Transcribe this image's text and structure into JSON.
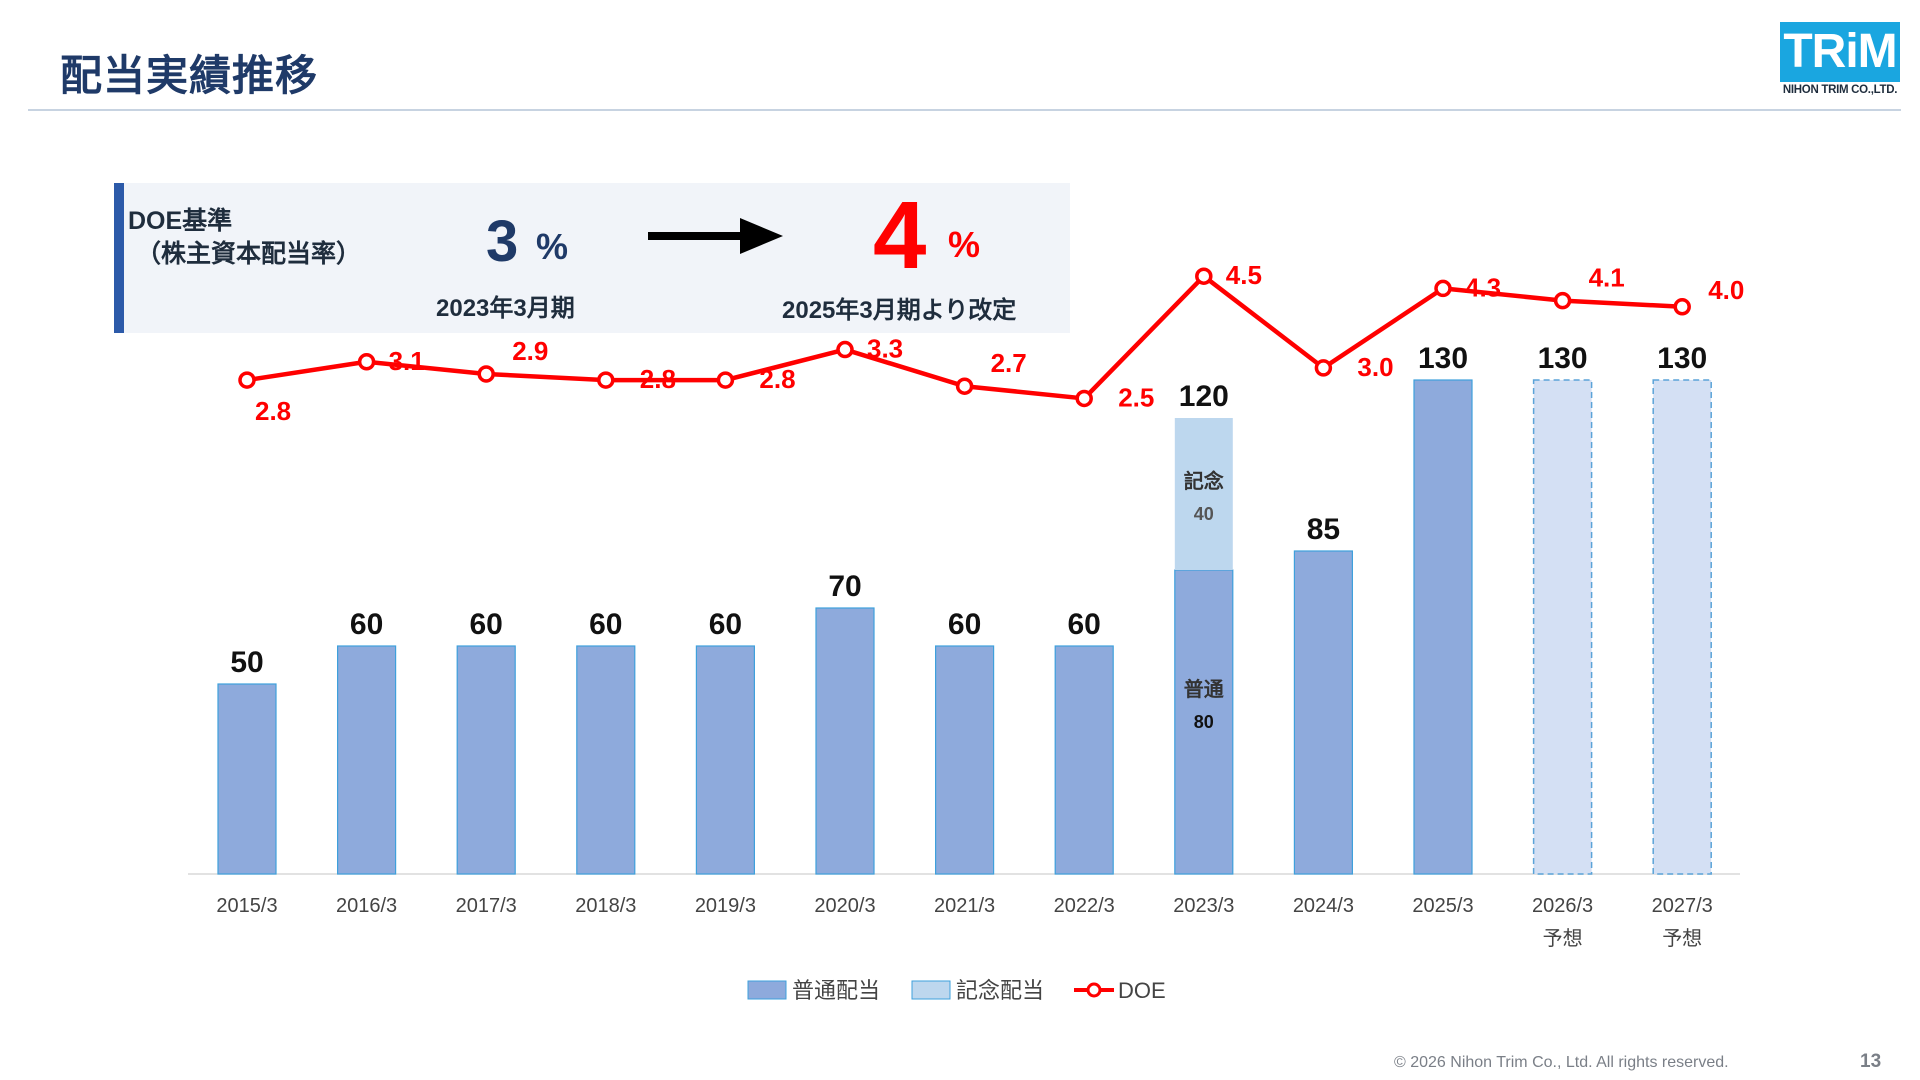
{
  "page": {
    "title": "配当実績推移",
    "copyright": "© 2026 Nihon Trim Co., Ltd. All rights reserved.",
    "page_number": "13"
  },
  "logo": {
    "mark": "TRiM",
    "company": "NIHON TRIM CO.,LTD.",
    "color": "#1aa6e0"
  },
  "doe_panel": {
    "label_line1": "DOE基準",
    "label_line2": "（株主資本配当率）",
    "old_value": "3",
    "old_unit": "%",
    "old_period": "2023年3月期",
    "new_value": "4",
    "new_unit": "%",
    "new_period": "2025年3月期より改定",
    "arrow_icon": "right-arrow-icon"
  },
  "chart_data": {
    "type": "bar",
    "categories": [
      "2015/3",
      "2016/3",
      "2017/3",
      "2018/3",
      "2019/3",
      "2020/3",
      "2021/3",
      "2022/3",
      "2023/3",
      "2024/3",
      "2025/3",
      "2026/3",
      "2027/3"
    ],
    "category_sublabels": [
      "",
      "",
      "",
      "",
      "",
      "",
      "",
      "",
      "",
      "",
      "",
      "予想",
      "予想"
    ],
    "forecast": [
      false,
      false,
      false,
      false,
      false,
      false,
      false,
      false,
      false,
      false,
      false,
      true,
      true
    ],
    "series": [
      {
        "name": "普通配当",
        "type": "bar",
        "color": "#8eaadc",
        "values": [
          50,
          60,
          60,
          60,
          60,
          70,
          60,
          60,
          80,
          85,
          130,
          130,
          130
        ]
      },
      {
        "name": "記念配当",
        "type": "bar",
        "color": "#bdd7ee",
        "values": [
          0,
          0,
          0,
          0,
          0,
          0,
          0,
          0,
          40,
          0,
          0,
          0,
          0
        ]
      },
      {
        "name": "DOE",
        "type": "line",
        "color": "#ff0000",
        "values": [
          2.8,
          3.1,
          2.9,
          2.8,
          2.8,
          3.3,
          2.7,
          2.5,
          4.5,
          3.0,
          4.3,
          4.1,
          4.0
        ]
      }
    ],
    "bar_total_labels": [
      "50",
      "60",
      "60",
      "60",
      "60",
      "70",
      "60",
      "60",
      "120",
      "85",
      "130",
      "130",
      "130"
    ],
    "doe_labels": [
      "2.8",
      "3.1",
      "2.9",
      "2.8",
      "2.8",
      "3.3",
      "2.7",
      "2.5",
      "4.5",
      "3.0",
      "4.3",
      "4.1",
      "4.0"
    ],
    "segment_annotations": [
      {
        "category": "2023/3",
        "series": "記念配当",
        "label": "記念",
        "value": "40"
      },
      {
        "category": "2023/3",
        "series": "普通配当",
        "label": "普通",
        "value": "80"
      }
    ],
    "legend": [
      "普通配当",
      "記念配当",
      "DOE"
    ],
    "legend_position": "bottom",
    "forecast_fill": "#d4e0f4",
    "ylim_bars": [
      0,
      180
    ],
    "ylim_doe": [
      -5.28,
      5.91
    ],
    "grid": false
  }
}
